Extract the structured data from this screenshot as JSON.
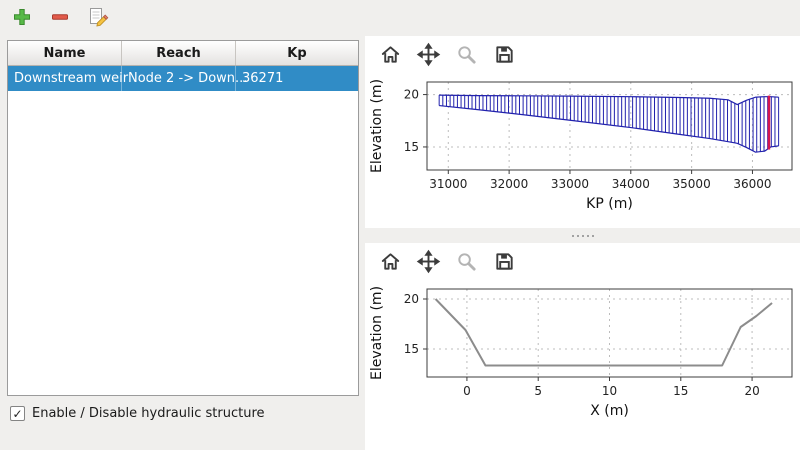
{
  "main_toolbar": {
    "buttons": [
      {
        "name": "add-structure",
        "icon": "plus-icon",
        "color": "#57b947"
      },
      {
        "name": "remove-structure",
        "icon": "minus-icon",
        "color": "#e25a4a"
      },
      {
        "name": "edit-structure",
        "icon": "edit-icon"
      }
    ]
  },
  "structures_table": {
    "columns": [
      "Name",
      "Reach",
      "Kp"
    ],
    "rows": [
      {
        "name": "Downstream weir",
        "reach": "Node 2 -> Down...",
        "kp": "36271",
        "selected": true
      }
    ],
    "selection_color": "#308cc6"
  },
  "enable_checkbox": {
    "label": "Enable / Disable hydraulic structure",
    "checked": true,
    "checkmark": "✓"
  },
  "chart_toolbar": {
    "icons": [
      {
        "name": "home-icon",
        "action": "home",
        "disabled": false
      },
      {
        "name": "pan-icon",
        "action": "pan",
        "disabled": false
      },
      {
        "name": "zoom-icon",
        "action": "zoom",
        "disabled": true
      },
      {
        "name": "save-icon",
        "action": "save",
        "disabled": false
      }
    ]
  },
  "chart_data": [
    {
      "type": "line",
      "xlabel": "KP (m)",
      "ylabel": "Elevation (m)",
      "xlim": [
        30650,
        36650
      ],
      "ylim": [
        12.8,
        21.2
      ],
      "xticks": [
        31000,
        32000,
        33000,
        34000,
        35000,
        36000
      ],
      "yticks": [
        15,
        20
      ],
      "grid": true,
      "band": {
        "name": "cross-sections-hatch",
        "color": "#2121ad",
        "hatch_step": 60,
        "x": [
          30850,
          31500,
          32200,
          33000,
          34000,
          34800,
          35300,
          35600,
          35750,
          35900,
          36050,
          36200,
          36300,
          36430
        ],
        "top": [
          19.95,
          19.9,
          19.88,
          19.85,
          19.8,
          19.72,
          19.65,
          19.5,
          19.05,
          19.45,
          19.75,
          19.8,
          19.8,
          19.75
        ],
        "bottom": [
          18.95,
          18.55,
          18.1,
          17.55,
          16.85,
          16.2,
          15.8,
          15.5,
          15.35,
          14.95,
          14.5,
          14.6,
          15.0,
          15.1
        ]
      },
      "lines": [
        {
          "name": "structure-position-marker",
          "color": "#d8154f",
          "width": 2.5,
          "x": [
            36271,
            36271
          ],
          "y": [
            14.75,
            19.9
          ]
        }
      ]
    },
    {
      "type": "line",
      "xlabel": "X (m)",
      "ylabel": "Elevation (m)",
      "xlim": [
        -2.8,
        22.8
      ],
      "ylim": [
        12.2,
        21.0
      ],
      "xticks": [
        0,
        5,
        10,
        15,
        20
      ],
      "yticks": [
        15,
        20
      ],
      "grid": true,
      "lines": [
        {
          "name": "cross-section-profile",
          "color": "#8c8c8c",
          "width": 2,
          "x": [
            -2.2,
            -0.1,
            1.3,
            17.9,
            19.2,
            20.3,
            21.4
          ],
          "y": [
            20.0,
            16.9,
            13.35,
            13.35,
            17.2,
            18.3,
            19.6
          ]
        }
      ]
    }
  ]
}
